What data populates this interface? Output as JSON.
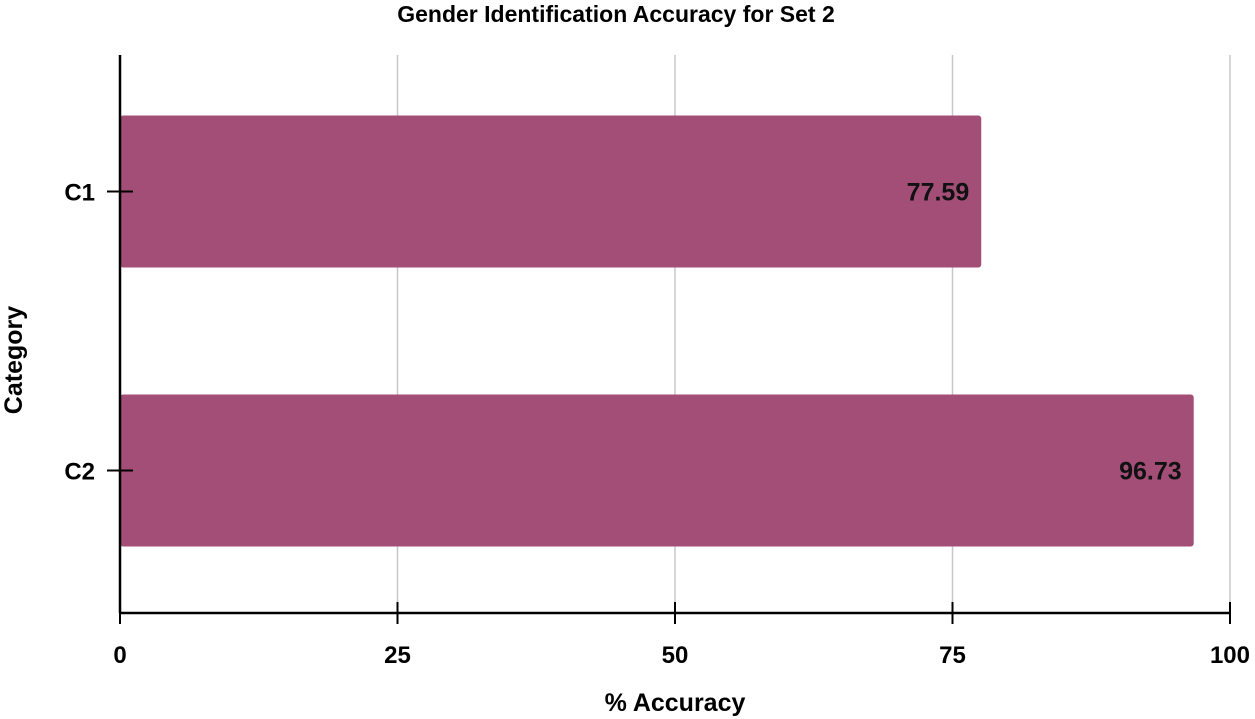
{
  "chart_data": {
    "type": "bar",
    "orientation": "horizontal",
    "title": "Gender Identification Accuracy for Set 2",
    "xlabel": "% Accuracy",
    "ylabel": "Category",
    "categories": [
      "C1",
      "C2"
    ],
    "values": [
      77.59,
      96.73
    ],
    "data_labels": [
      "77.59",
      "96.73"
    ],
    "xlim": [
      0,
      100
    ],
    "xticks": [
      0,
      25,
      50,
      75,
      100
    ],
    "xtick_labels": [
      "0",
      "25",
      "50",
      "75",
      "100"
    ],
    "grid": "vertical",
    "bar_color": "#a34e77",
    "grid_color": "#c8c8c8",
    "axis_color": "#000000"
  }
}
